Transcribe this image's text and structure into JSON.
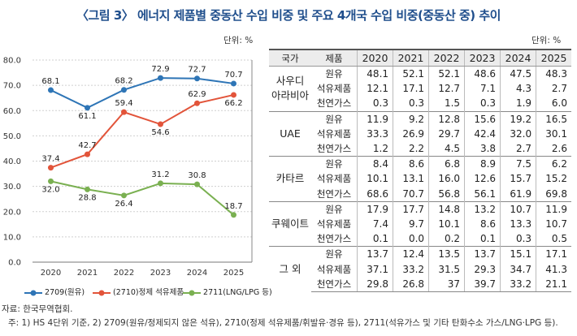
{
  "title": "〈그림 3〉 에너지 제품별 중동산 수입 비중 및 주요 4개국 수입 비중(중동산 중) 추이",
  "chart_unit": "단위: %",
  "table_unit": "단위: %",
  "chart_data": {
    "type": "line",
    "x": [
      "2020",
      "2021",
      "2022",
      "2023",
      "2024",
      "2025"
    ],
    "ylim": [
      0,
      80
    ],
    "yticks": [
      "0.0",
      "10.0",
      "20.0",
      "30.0",
      "40.0",
      "50.0",
      "60.0",
      "70.0",
      "80.0"
    ],
    "grid": true,
    "series": [
      {
        "name": "2709(원유)",
        "color": "#2e75b6",
        "values": [
          68.1,
          61.1,
          68.2,
          72.9,
          72.7,
          70.7
        ],
        "labels": [
          "68.1",
          "61.1",
          "68.2",
          "72.9",
          "72.7",
          "70.7"
        ]
      },
      {
        "name": "(2710)정제 석유제품",
        "color": "#e2543a",
        "values": [
          37.4,
          42.7,
          59.4,
          54.6,
          62.9,
          66.2
        ],
        "labels": [
          "37.4",
          "42.7",
          "59.4",
          "54.6",
          "62.9",
          "66.2"
        ]
      },
      {
        "name": "2711(LNG/LPG 등)",
        "color": "#7ab051",
        "values": [
          32.0,
          28.8,
          26.4,
          31.2,
          30.8,
          18.7
        ],
        "labels": [
          "32.0",
          "28.8",
          "26.4",
          "31.2",
          "30.8",
          "18.7"
        ]
      }
    ]
  },
  "table": {
    "headers": [
      "국가",
      "제품",
      "2020",
      "2021",
      "2022",
      "2023",
      "2024",
      "2025"
    ],
    "groups": [
      {
        "country": "사우디\n아라비아",
        "rows": [
          {
            "product": "원유",
            "values": [
              "48.1",
              "52.1",
              "52.1",
              "48.6",
              "47.5",
              "48.3"
            ]
          },
          {
            "product": "석유제품",
            "values": [
              "12.1",
              "17.1",
              "12.7",
              "7.1",
              "4.3",
              "2.7"
            ]
          },
          {
            "product": "천연가스",
            "values": [
              "0.3",
              "0.3",
              "1.5",
              "0.3",
              "1.9",
              "6.0"
            ]
          }
        ]
      },
      {
        "country": "UAE",
        "rows": [
          {
            "product": "원유",
            "values": [
              "11.9",
              "9.2",
              "12.8",
              "15.6",
              "19.2",
              "16.5"
            ]
          },
          {
            "product": "석유제품",
            "values": [
              "33.3",
              "26.9",
              "29.7",
              "42.4",
              "32.0",
              "30.1"
            ]
          },
          {
            "product": "천연가스",
            "values": [
              "1.2",
              "2.2",
              "4.5",
              "3.8",
              "2.7",
              "2.6"
            ]
          }
        ]
      },
      {
        "country": "카타르",
        "rows": [
          {
            "product": "원유",
            "values": [
              "8.4",
              "8.6",
              "6.8",
              "8.9",
              "7.5",
              "6.2"
            ]
          },
          {
            "product": "석유제품",
            "values": [
              "10.1",
              "13.1",
              "16.0",
              "12.6",
              "15.7",
              "15.2"
            ]
          },
          {
            "product": "천연가스",
            "values": [
              "68.6",
              "70.7",
              "56.8",
              "56.1",
              "61.9",
              "69.8"
            ]
          }
        ]
      },
      {
        "country": "쿠웨이트",
        "rows": [
          {
            "product": "원유",
            "values": [
              "17.9",
              "17.7",
              "14.8",
              "13.2",
              "10.7",
              "11.9"
            ]
          },
          {
            "product": "석유제품",
            "values": [
              "7.4",
              "9.7",
              "10.1",
              "8.6",
              "13.3",
              "10.7"
            ]
          },
          {
            "product": "천연가스",
            "values": [
              "0.1",
              "0.0",
              "0.2",
              "0.1",
              "0.3",
              "0.5"
            ]
          }
        ]
      },
      {
        "country": "그 외",
        "rows": [
          {
            "product": "원유",
            "values": [
              "13.7",
              "12.4",
              "13.5",
              "13.7",
              "15.1",
              "17.1"
            ]
          },
          {
            "product": "석유제품",
            "values": [
              "37.1",
              "33.2",
              "31.5",
              "29.3",
              "34.7",
              "41.3"
            ]
          },
          {
            "product": "천연가스",
            "values": [
              "29.8",
              "26.8",
              "37",
              "39.7",
              "33.2",
              "21.1"
            ]
          }
        ]
      }
    ]
  },
  "source": "자료: 한국무역협회.",
  "note": "주: 1) HS 4단위 기준, 2) 2709(원유/정제되지 않은 석유), 2710(정제 석유제품/휘발유·경유 등), 2711(석유가스 및 기타 탄화수소 가스/LNG·LPG 등)."
}
